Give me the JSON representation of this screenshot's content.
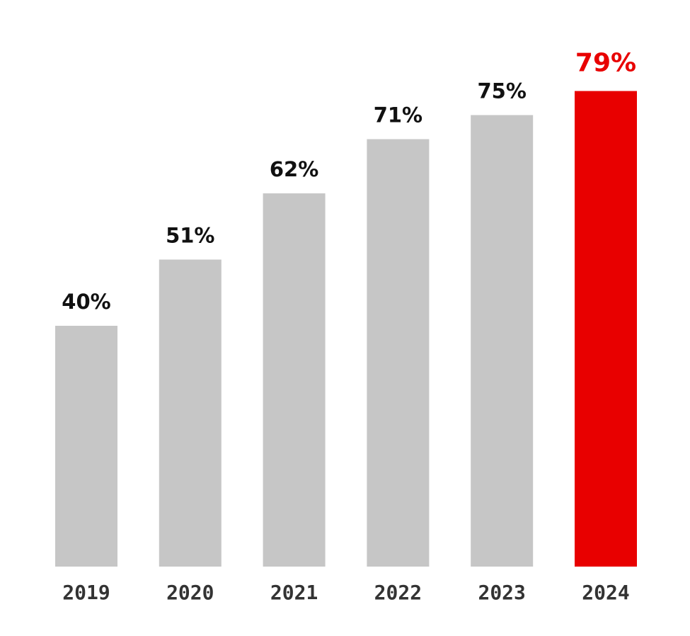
{
  "chart_data": {
    "type": "bar",
    "title": "",
    "xlabel": "",
    "ylabel": "",
    "categories": [
      "2019",
      "2020",
      "2021",
      "2022",
      "2023",
      "2024"
    ],
    "values": [
      40,
      51,
      62,
      71,
      75,
      79
    ],
    "value_labels": [
      "40%",
      "51%",
      "62%",
      "71%",
      "75%",
      "79%"
    ],
    "ylim": [
      0,
      100
    ],
    "grid": false,
    "legend": "none",
    "highlight_index": 5,
    "colors": {
      "bar": "#c6c6c6",
      "highlight": "#e80000",
      "label": "#111111",
      "axis_label": "#333333"
    }
  }
}
